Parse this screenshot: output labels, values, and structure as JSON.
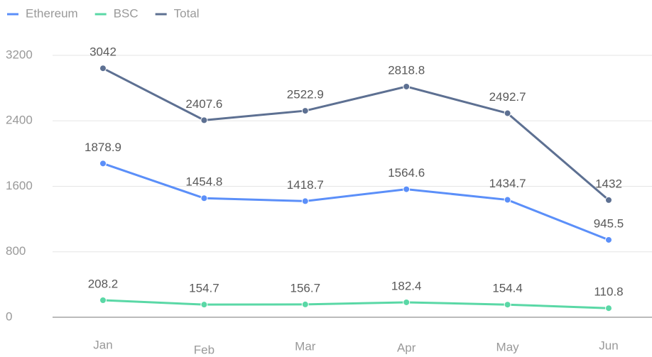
{
  "chart_data": {
    "type": "line",
    "categories": [
      "Jan",
      "Feb",
      "Mar",
      "Apr",
      "May",
      "Jun"
    ],
    "series": [
      {
        "name": "Ethereum",
        "color": "#5b8ff9",
        "values": [
          1878.9,
          1454.8,
          1418.7,
          1564.6,
          1434.7,
          945.5
        ]
      },
      {
        "name": "BSC",
        "color": "#5ad8a6",
        "values": [
          208.2,
          154.7,
          156.7,
          182.4,
          154.4,
          110.8
        ]
      },
      {
        "name": "Total",
        "color": "#5d7092",
        "values": [
          3042,
          2407.6,
          2522.9,
          2818.8,
          2492.7,
          1432
        ]
      }
    ],
    "ylim": [
      0,
      3200
    ],
    "yticks": [
      0,
      800,
      1600,
      2400,
      3200
    ],
    "grid": true,
    "legend": "top-left"
  }
}
